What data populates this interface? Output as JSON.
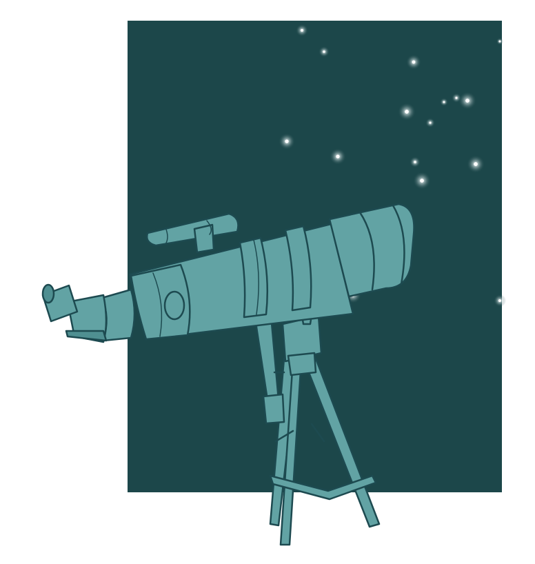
{
  "scene": {
    "subject": "telescope-icon",
    "colors": {
      "page_background": "#ffffff",
      "night_sky": "#1c474a",
      "telescope_fill": "#62a3a4",
      "telescope_shadow": "#4f8f91",
      "outline": "#1d4a50",
      "star": "#ffffff"
    }
  }
}
